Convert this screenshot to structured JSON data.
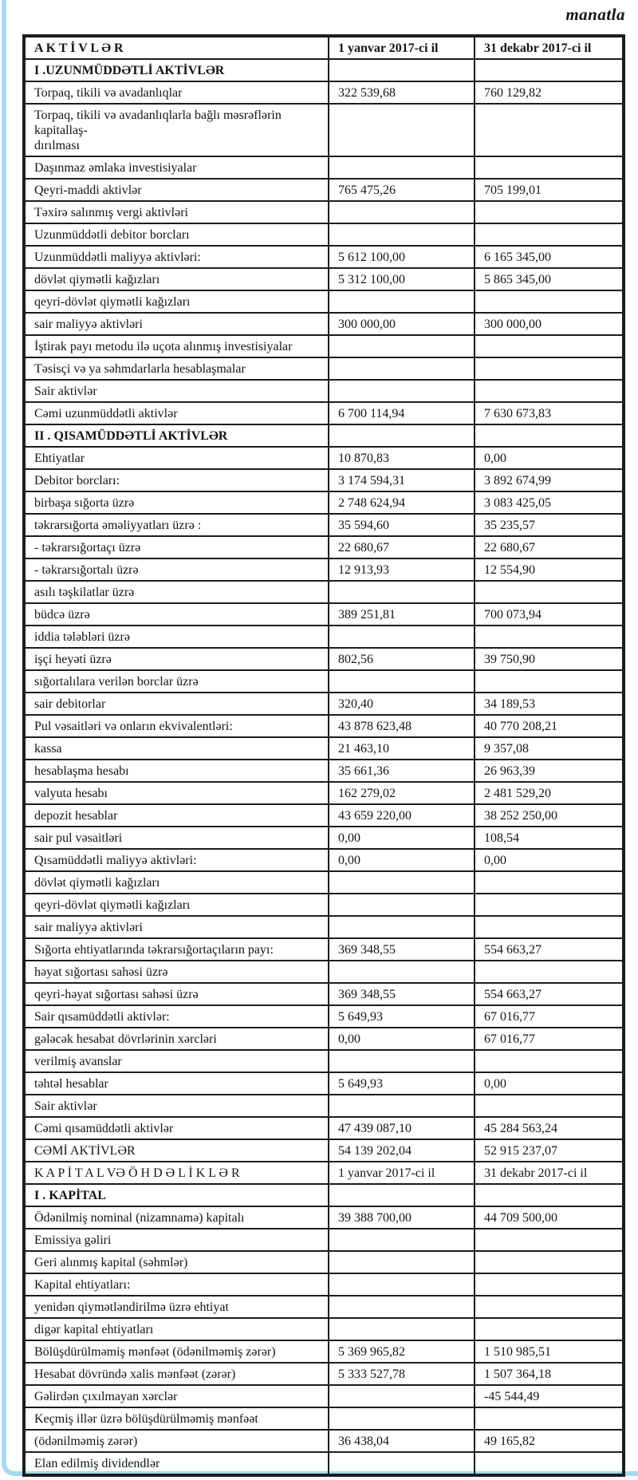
{
  "unit_label": "manatla",
  "colors": {
    "page_border": "#a6d9f0",
    "table_border": "#1c1c1c",
    "text": "#141414",
    "background": "#ffffff"
  },
  "table": {
    "rows": [
      {
        "style": "header",
        "label": "A K T İ V L Ə R",
        "v1": "1 yanvar 2017-ci il",
        "v2": "31 dekabr 2017-ci il"
      },
      {
        "style": "section",
        "label": "I .UZUNMÜDDƏTLİ AKTİVLƏR",
        "v1": "",
        "v2": ""
      },
      {
        "label": "Torpaq, tikili və avadanlıqlar",
        "v1": "322 539,68",
        "v2": "760 129,82"
      },
      {
        "label": "Torpaq, tikili və avadanlıqlarla bağlı məsrəflərin kapitallaş-\ndırılması",
        "v1": "",
        "v2": ""
      },
      {
        "label": "Daşınmaz əmlaka investisiyalar",
        "v1": "",
        "v2": ""
      },
      {
        "label": "Qeyri-maddi aktivlər",
        "v1": "765 475,26",
        "v2": "705 199,01"
      },
      {
        "label": "Təxirə salınmış vergi aktivləri",
        "v1": "",
        "v2": ""
      },
      {
        "label": "Uzunmüddətli debitor borcları",
        "v1": "",
        "v2": ""
      },
      {
        "label": "Uzunmüddətli maliyyə aktivləri:",
        "v1": "5 612 100,00",
        "v2": "6 165 345,00"
      },
      {
        "label": "dövlət qiymətli kağızları",
        "v1": "5 312 100,00",
        "v2": "5 865 345,00"
      },
      {
        "label": "qeyri-dövlət qiymətli kağızları",
        "v1": "",
        "v2": ""
      },
      {
        "label": "sair maliyyə aktivləri",
        "v1": "300 000,00",
        "v2": "300 000,00"
      },
      {
        "label": "İştirak payı metodu ilə uçota alınmış investisiyalar",
        "v1": "",
        "v2": ""
      },
      {
        "label": "Təsisçi və ya səhmdarlarla hesablaşmalar",
        "v1": "",
        "v2": ""
      },
      {
        "label": "Sair aktivlər",
        "v1": "",
        "v2": ""
      },
      {
        "label": "Cəmi uzunmüddətli aktivlər",
        "v1": "6 700 114,94",
        "v2": "7 630 673,83"
      },
      {
        "style": "section",
        "label": "II . QISAMÜDDƏTLİ AKTİVLƏR",
        "v1": "",
        "v2": ""
      },
      {
        "label": "Ehtiyatlar",
        "v1": "10 870,83",
        "v2": "0,00"
      },
      {
        "label": "Debitor borcları:",
        "v1": "3 174 594,31",
        "v2": "3 892 674,99"
      },
      {
        "label": "birbaşa sığorta üzrə",
        "v1": "2 748 624,94",
        "v2": "3 083 425,05"
      },
      {
        "label": "təkrarsığorta əməliyyatları üzrə :",
        "v1": "35 594,60",
        "v2": "35 235,57"
      },
      {
        "label": "- təkrarsığortaçı üzrə",
        "v1": "22 680,67",
        "v2": "22 680,67"
      },
      {
        "label": "- təkrarsığortalı üzrə",
        "v1": "12 913,93",
        "v2": "12 554,90"
      },
      {
        "label": "asılı təşkilatlar üzrə",
        "v1": "",
        "v2": ""
      },
      {
        "label": "büdcə üzrə",
        "v1": "389 251,81",
        "v2": "700 073,94"
      },
      {
        "label": "iddia tələbləri üzrə",
        "v1": "",
        "v2": ""
      },
      {
        "label": "işçi heyəti üzrə",
        "v1": "802,56",
        "v2": "39 750,90"
      },
      {
        "label": "sığortalılara verilən borclar üzrə",
        "v1": "",
        "v2": ""
      },
      {
        "label": "sair debitorlar",
        "v1": "320,40",
        "v2": "34 189,53"
      },
      {
        "label": "Pul vəsaitləri  və onların ekvivalentləri:",
        "v1": "43 878 623,48",
        "v2": "40 770 208,21"
      },
      {
        "label": "kassa",
        "v1": "21 463,10",
        "v2": "9 357,08"
      },
      {
        "label": "hesablaşma hesabı",
        "v1": "35 661,36",
        "v2": "26 963,39"
      },
      {
        "label": "valyuta hesabı",
        "v1": "162 279,02",
        "v2": "2 481 529,20"
      },
      {
        "label": "depozit hesablar",
        "v1": "43 659 220,00",
        "v2": "38 252 250,00"
      },
      {
        "label": "sair pul vəsaitləri",
        "v1": "0,00",
        "v2": "108,54"
      },
      {
        "label": "Qısamüddətli maliyyə aktivləri:",
        "v1": "0,00",
        "v2": "0,00"
      },
      {
        "label": "dövlət qiymətli kağızları",
        "v1": "",
        "v2": ""
      },
      {
        "label": "qeyri-dövlət qiymətli kağızları",
        "v1": "",
        "v2": ""
      },
      {
        "label": "sair maliyyə aktivləri",
        "v1": "",
        "v2": ""
      },
      {
        "label": "Sığorta ehtiyatlarında təkrarsığortaçıların payı:",
        "v1": "369 348,55",
        "v2": "554 663,27"
      },
      {
        "label": "həyat sığortası sahəsi üzrə",
        "v1": "",
        "v2": ""
      },
      {
        "label": "qeyri-həyat sığortası sahəsi üzrə",
        "v1": "369 348,55",
        "v2": "554 663,27"
      },
      {
        "label": "Sair qısamüddətli aktivlər:",
        "v1": "5 649,93",
        "v2": "67 016,77"
      },
      {
        "label": "gələcək hesabat dövrlərinin xərcləri",
        "v1": "0,00",
        "v2": "67 016,77"
      },
      {
        "label": "verilmiş  avanslar",
        "v1": "",
        "v2": ""
      },
      {
        "label": "təhtəl hesablar",
        "v1": "5 649,93",
        "v2": "0,00"
      },
      {
        "label": "Sair aktivlər",
        "v1": "",
        "v2": ""
      },
      {
        "label": "Cəmi qısamüddətli aktivlər",
        "v1": "47 439 087,10",
        "v2": "45 284 563,24"
      },
      {
        "label": "CƏMİ AKTİVLƏR",
        "v1": "54 139 202,04",
        "v2": "52 915 237,07"
      },
      {
        "label": "K A P İ T A L  VƏ   Ö H D Ə L İ K L Ə R",
        "v1": "1 yanvar 2017-ci il",
        "v2": "31 dekabr 2017-ci il"
      },
      {
        "style": "section",
        "label": "I . KAPİTAL",
        "v1": "",
        "v2": ""
      },
      {
        "label": "Ödənilmiş nominal (nizamnamə) kapitalı",
        "v1": "39 388 700,00",
        "v2": "44 709 500,00"
      },
      {
        "label": "Emissiya gəliri",
        "v1": "",
        "v2": ""
      },
      {
        "label": "Geri alınmış kapital (səhmlər)",
        "v1": "",
        "v2": ""
      },
      {
        "label": "Kapital ehtiyatları:",
        "v1": "",
        "v2": ""
      },
      {
        "label": "yenidən qiymətləndirilmə üzrə ehtiyat",
        "v1": "",
        "v2": ""
      },
      {
        "label": "digər kapital ehtiyatları",
        "v1": "",
        "v2": ""
      },
      {
        "label": "Bölüşdürülməmiş mənfəət (ödənilməmiş zərər)",
        "v1": "5 369 965,82",
        "v2": "1 510 985,51"
      },
      {
        "label": "Hesabat dövründə xalis mənfəət (zərər)",
        "v1": "5 333 527,78",
        "v2": "1 507 364,18"
      },
      {
        "label": "Gəlirdən çıxılmayan xərclər",
        "v1": "",
        "v2": "-45 544,49"
      },
      {
        "label": "Keçmiş illər üzrə bölüşdürülməmiş mənfəət",
        "v1": "",
        "v2": ""
      },
      {
        "label": "(ödənilməmiş zərər)",
        "v1": "36 438,04",
        "v2": "49 165,82"
      },
      {
        "label": "Elan edilmiş dividendlər",
        "v1": "",
        "v2": ""
      }
    ]
  }
}
